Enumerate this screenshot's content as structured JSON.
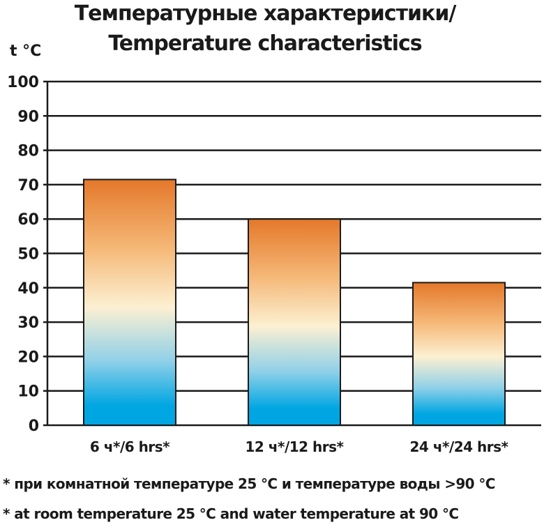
{
  "chart_data": {
    "type": "bar",
    "title_lines": [
      "Температурные характеристики/",
      "Temperature characteristics"
    ],
    "ylabel": "t °C",
    "xlabel": "",
    "ylim": [
      0,
      100
    ],
    "yticks": [
      0,
      10,
      20,
      30,
      40,
      50,
      60,
      70,
      80,
      90,
      100
    ],
    "grid": true,
    "categories": [
      "6 ч*/6 hrs*",
      "12 ч*/12 hrs*",
      "24 ч*/24 hrs*"
    ],
    "values": [
      71.5,
      60,
      41.5
    ],
    "colors": {
      "bar_top": "#e4782a",
      "bar_middle": "#fcf0d2",
      "bar_bottom": "#00a6e2"
    },
    "footnotes": [
      "* при комнатной температуре 25 °C и температуре воды >90 °C",
      "* at room temperature 25 °C and water temperature at 90 °C"
    ]
  }
}
